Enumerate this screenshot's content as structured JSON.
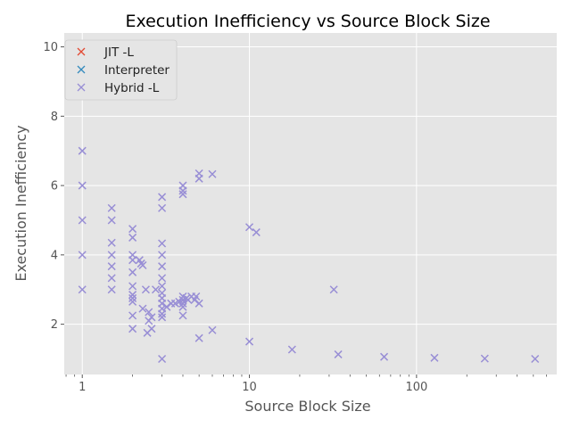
{
  "chart_data": {
    "type": "scatter",
    "title": "Execution Inefficiency vs Source Block Size",
    "xlabel": "Source Block Size",
    "ylabel": "Execution Inefficiency",
    "xscale": "log",
    "xlim": [
      0.78,
      690
    ],
    "ylim": [
      0.55,
      10.4
    ],
    "xticks": [
      {
        "value": 1,
        "label": "1"
      },
      {
        "value": 10,
        "label": "10"
      },
      {
        "value": 100,
        "label": "100"
      }
    ],
    "yticks": [
      {
        "value": 2,
        "label": "2"
      },
      {
        "value": 4,
        "label": "4"
      },
      {
        "value": 6,
        "label": "6"
      },
      {
        "value": 8,
        "label": "8"
      },
      {
        "value": 10,
        "label": "10"
      }
    ],
    "grid": true,
    "legend_position": "top-left",
    "marker": "x",
    "series": [
      {
        "name": "JIT -L",
        "color": "#E24A33",
        "points": []
      },
      {
        "name": "Interpreter",
        "color": "#348ABD",
        "points": []
      },
      {
        "name": "Hybrid -L",
        "color": "#988ED5",
        "points": [
          [
            1,
            7.0
          ],
          [
            1,
            6.0
          ],
          [
            1,
            5.0
          ],
          [
            1,
            4.0
          ],
          [
            1,
            3.0
          ],
          [
            1.5,
            5.35
          ],
          [
            1.5,
            5.0
          ],
          [
            1.5,
            4.35
          ],
          [
            1.5,
            4.0
          ],
          [
            1.5,
            3.67
          ],
          [
            1.5,
            3.33
          ],
          [
            1.5,
            3.0
          ],
          [
            2,
            4.75
          ],
          [
            2,
            4.5
          ],
          [
            2,
            4.0
          ],
          [
            2,
            3.85
          ],
          [
            2,
            3.5
          ],
          [
            2,
            3.1
          ],
          [
            2,
            2.85
          ],
          [
            2,
            2.75
          ],
          [
            2,
            2.65
          ],
          [
            2,
            2.25
          ],
          [
            2,
            1.87
          ],
          [
            2.2,
            3.85
          ],
          [
            2.25,
            3.75
          ],
          [
            2.3,
            3.7
          ],
          [
            2.3,
            2.45
          ],
          [
            2.4,
            3.0
          ],
          [
            2.5,
            2.35
          ],
          [
            2.45,
            1.75
          ],
          [
            2.6,
            2.2
          ],
          [
            2.6,
            1.87
          ],
          [
            2.5,
            2.1
          ],
          [
            2.75,
            3.0
          ],
          [
            3,
            5.67
          ],
          [
            3,
            5.35
          ],
          [
            3,
            4.33
          ],
          [
            3,
            4.0
          ],
          [
            3,
            3.67
          ],
          [
            3,
            3.33
          ],
          [
            3,
            3.1
          ],
          [
            3,
            2.9
          ],
          [
            3,
            2.75
          ],
          [
            3,
            2.6
          ],
          [
            3,
            2.45
          ],
          [
            3,
            2.3
          ],
          [
            3,
            2.2
          ],
          [
            3,
            1.0
          ],
          [
            3.2,
            2.5
          ],
          [
            3.4,
            2.6
          ],
          [
            3.6,
            2.6
          ],
          [
            3.8,
            2.65
          ],
          [
            4,
            6.0
          ],
          [
            4,
            5.85
          ],
          [
            4,
            5.75
          ],
          [
            4,
            2.8
          ],
          [
            4,
            2.7
          ],
          [
            4,
            2.6
          ],
          [
            4,
            2.5
          ],
          [
            4,
            2.25
          ],
          [
            4.2,
            2.75
          ],
          [
            4.3,
            2.7
          ],
          [
            4.5,
            2.8
          ],
          [
            4.7,
            2.7
          ],
          [
            4.8,
            2.8
          ],
          [
            5,
            6.35
          ],
          [
            5,
            6.2
          ],
          [
            5,
            2.6
          ],
          [
            5,
            1.6
          ],
          [
            6,
            6.33
          ],
          [
            6,
            1.83
          ],
          [
            10,
            4.8
          ],
          [
            11,
            4.65
          ],
          [
            10,
            1.5
          ],
          [
            18,
            1.27
          ],
          [
            32,
            3.0
          ],
          [
            34,
            1.13
          ],
          [
            64,
            1.06
          ],
          [
            128,
            1.03
          ],
          [
            256,
            1.01
          ],
          [
            512,
            1.0
          ]
        ]
      }
    ]
  }
}
